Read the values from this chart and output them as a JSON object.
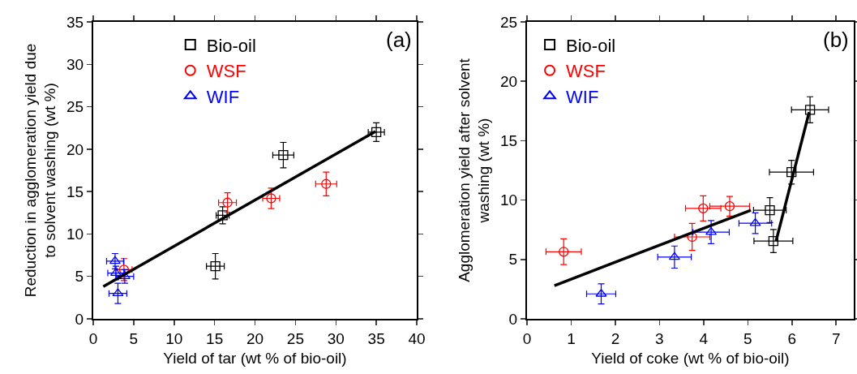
{
  "chart_data": [
    {
      "type": "scatter",
      "xlabel": "Yield of tar (wt % of bio-oil)",
      "ylabel": "Reduction in agglomeration yield due\nto solvent washing (wt %)",
      "annotations": [
        "(a)"
      ],
      "xlim": [
        0,
        40
      ],
      "xticks": [
        0,
        5,
        10,
        15,
        20,
        25,
        30,
        35,
        40
      ],
      "ylim": [
        0,
        35
      ],
      "yticks": [
        0,
        5,
        10,
        15,
        20,
        25,
        30,
        35
      ],
      "grid": false,
      "legend": "top",
      "series": [
        {
          "name": "Bio-oil",
          "color": "#000000",
          "marker": "square",
          "x": [
            35.0,
            23.5,
            16.0,
            15.1
          ],
          "values": [
            22.0,
            19.3,
            12.2,
            6.2
          ],
          "errors": [
            1.1,
            1.5,
            1.0,
            1.5
          ],
          "xerrors": [
            1.0,
            1.3,
            0.8,
            1.1
          ]
        },
        {
          "name": "WSF",
          "color": "#ff0000",
          "marker": "circle",
          "x": [
            16.6,
            22.0,
            28.8,
            3.8
          ],
          "values": [
            13.7,
            14.2,
            15.9,
            5.8
          ],
          "errors": [
            1.15,
            1.2,
            1.4,
            1.3
          ],
          "xerrors": [
            1.1,
            1.05,
            1.3,
            1.0
          ]
        },
        {
          "name": "WIF",
          "color": "#0000ff",
          "marker": "triangle",
          "x": [
            2.7,
            2.8,
            3.9,
            3.05
          ],
          "values": [
            6.8,
            5.4,
            5.0,
            3.0
          ],
          "errors": [
            0.9,
            0.8,
            0.8,
            1.2
          ],
          "xerrors": [
            1.05,
            1.0,
            1.1,
            1.1
          ]
        },
        {
          "type": "line",
          "color": "#000000",
          "marker": "none",
          "x": [
            1.24,
            34.9
          ],
          "values": [
            3.8,
            22.1
          ]
        }
      ]
    },
    {
      "type": "scatter",
      "xlabel": "Yield of coke (wt % of bio-oil)",
      "ylabel": "Agglomeration yield after solvent\nwashing (wt %)",
      "annotations": [
        "(b)"
      ],
      "xlim": [
        0,
        7.4
      ],
      "xticks": [
        0,
        1,
        2,
        3,
        4,
        5,
        6,
        7
      ],
      "ylim": [
        0,
        25
      ],
      "yticks": [
        0,
        5,
        10,
        15,
        20,
        25
      ],
      "grid": false,
      "legend": "top left",
      "series": [
        {
          "name": "Bio-oil",
          "color": "#000000",
          "marker": "square",
          "x": [
            6.41,
            5.99,
            5.5,
            5.58
          ],
          "values": [
            17.6,
            12.35,
            9.15,
            6.55
          ],
          "errors": [
            1.1,
            1.0,
            1.05,
            0.97
          ],
          "xerrors": [
            0.42,
            0.5,
            0.37,
            0.44
          ]
        },
        {
          "name": "WSF",
          "color": "#ff0000",
          "marker": "circle",
          "x": [
            0.83,
            3.99,
            4.59,
            3.74
          ],
          "values": [
            5.65,
            9.3,
            9.48,
            6.9
          ],
          "errors": [
            1.08,
            1.06,
            0.83,
            1.13
          ],
          "xerrors": [
            0.4,
            0.4,
            0.45,
            0.4
          ]
        },
        {
          "name": "WIF",
          "color": "#0000ff",
          "marker": "triangle",
          "x": [
            1.68,
            3.34,
            4.17,
            5.17
          ],
          "values": [
            2.1,
            5.2,
            7.3,
            8.05
          ],
          "errors": [
            0.85,
            0.93,
            0.97,
            0.87
          ],
          "xerrors": [
            0.33,
            0.38,
            0.41,
            0.37
          ]
        },
        {
          "type": "line",
          "color": "#000000",
          "marker": "none",
          "x": [
            0.62,
            5.07
          ],
          "values": [
            2.8,
            9.15
          ]
        },
        {
          "type": "line",
          "color": "#000000",
          "marker": "none",
          "x": [
            5.64,
            6.39
          ],
          "values": [
            6.55,
            17.4
          ]
        }
      ]
    }
  ]
}
